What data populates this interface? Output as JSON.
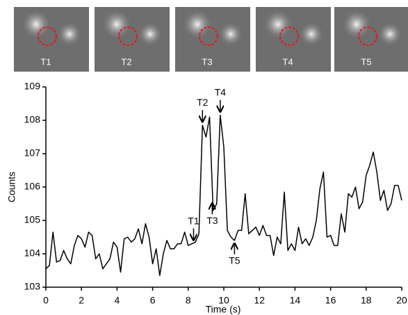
{
  "images": [
    {
      "label": "T1"
    },
    {
      "label": "T2"
    },
    {
      "label": "T3"
    },
    {
      "label": "T4"
    },
    {
      "label": "T5"
    }
  ],
  "chart_data": {
    "type": "line",
    "xlabel": "Time (s)",
    "ylabel": "Counts",
    "color": "#000000",
    "xlim": [
      0,
      20
    ],
    "ylim": [
      103,
      109
    ],
    "xticks": [
      0,
      2,
      4,
      6,
      8,
      10,
      12,
      14,
      16,
      18,
      20
    ],
    "yticks": [
      103,
      104,
      105,
      106,
      107,
      108,
      109
    ],
    "x": [
      0,
      0.2,
      0.4,
      0.6,
      0.8,
      1,
      1.2,
      1.4,
      1.6,
      1.8,
      2,
      2.2,
      2.4,
      2.6,
      2.8,
      3,
      3.2,
      3.4,
      3.6,
      3.8,
      4,
      4.2,
      4.4,
      4.6,
      4.8,
      5,
      5.2,
      5.4,
      5.6,
      5.8,
      6,
      6.2,
      6.4,
      6.6,
      6.8,
      7,
      7.2,
      7.4,
      7.6,
      7.8,
      8,
      8.2,
      8.4,
      8.6,
      8.8,
      9,
      9.2,
      9.4,
      9.6,
      9.8,
      10,
      10.2,
      10.4,
      10.6,
      10.8,
      11,
      11.2,
      11.4,
      11.6,
      11.8,
      12,
      12.2,
      12.4,
      12.6,
      12.8,
      13,
      13.2,
      13.4,
      13.6,
      13.8,
      14,
      14.2,
      14.4,
      14.6,
      14.8,
      15,
      15.2,
      15.4,
      15.6,
      15.8,
      16,
      16.2,
      16.4,
      16.6,
      16.8,
      17,
      17.2,
      17.4,
      17.6,
      17.8,
      18,
      18.2,
      18.4,
      18.6,
      18.8,
      19,
      19.2,
      19.4,
      19.6,
      19.8,
      20
    ],
    "values": [
      103.55,
      103.65,
      104.65,
      103.75,
      103.8,
      104.1,
      103.85,
      103.7,
      104.25,
      104.55,
      104.45,
      104.2,
      104.65,
      104.55,
      103.85,
      104.0,
      103.55,
      103.7,
      103.85,
      104.35,
      104.2,
      103.45,
      104.45,
      104.5,
      104.35,
      104.45,
      104.75,
      104.3,
      104.9,
      104.5,
      103.7,
      104.15,
      103.35,
      104.0,
      104.4,
      104.15,
      104.15,
      104.3,
      104.3,
      104.65,
      104.25,
      104.3,
      104.35,
      104.6,
      107.85,
      107.5,
      108.1,
      105.3,
      105.5,
      108.15,
      107.2,
      104.7,
      104.5,
      104.4,
      104.7,
      104.7,
      105.8,
      104.6,
      104.7,
      104.8,
      104.55,
      104.85,
      104.55,
      104.55,
      103.95,
      104.5,
      104.3,
      105.85,
      104.1,
      104.3,
      104.1,
      104.8,
      104.3,
      104.45,
      104.25,
      104.5,
      105.0,
      105.95,
      106.45,
      104.5,
      104.55,
      104.25,
      104.25,
      105.2,
      104.65,
      105.8,
      105.7,
      106.0,
      105.35,
      105.55,
      106.35,
      106.65,
      107.05,
      106.45,
      105.6,
      105.9,
      105.3,
      105.5,
      106.05,
      106.05,
      105.6
    ],
    "annotations": [
      {
        "text": "T1",
        "x": 8.3,
        "y": 104.3,
        "position": "above"
      },
      {
        "text": "T2",
        "x": 8.8,
        "y": 107.85,
        "position": "above"
      },
      {
        "text": "T3",
        "x": 9.35,
        "y": 105.6,
        "position": "below"
      },
      {
        "text": "T4",
        "x": 9.8,
        "y": 108.15,
        "position": "above"
      },
      {
        "text": "T5",
        "x": 10.6,
        "y": 104.4,
        "position": "below"
      }
    ]
  }
}
